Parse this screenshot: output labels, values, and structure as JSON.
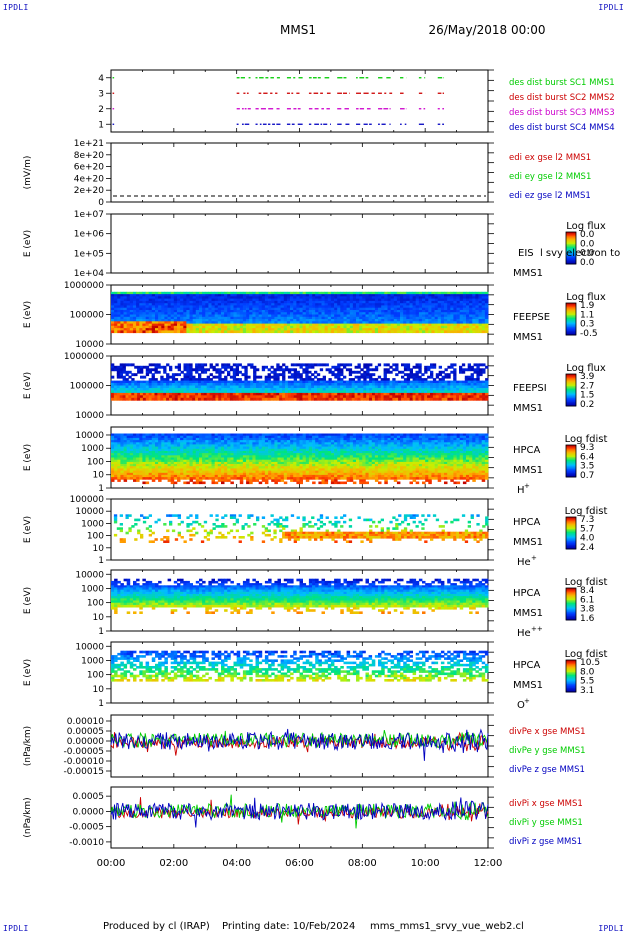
{
  "corner_label": "IPDLI",
  "header": {
    "spacecraft": "MMS1",
    "date": "26/May/2018 00:00"
  },
  "footer": {
    "produced_by": "Produced by cl (IRAP)",
    "printing_date": "Printing date: 10/Feb/2024",
    "file": "mms_mms1_srvy_vue_web2.cl"
  },
  "colors": {
    "blue": "#0000c0",
    "magenta": "#cc00cc",
    "red": "#cc0000",
    "green": "#00cc00"
  },
  "chart_data": [
    {
      "type": "scatter",
      "panel": "burst",
      "yticks": [
        "1",
        "2",
        "3",
        "4"
      ],
      "ylim": [
        0.5,
        4.5
      ],
      "series": [
        {
          "name": "des dist burst SC1 MMS1",
          "y": 4,
          "color": "#00cc00",
          "segments": [
            [
              0.05,
              0.1
            ],
            [
              4.0,
              4.45
            ],
            [
              4.6,
              5.4
            ],
            [
              5.6,
              6.1
            ],
            [
              6.3,
              7.0
            ],
            [
              7.2,
              7.6
            ],
            [
              7.8,
              8.3
            ],
            [
              8.5,
              8.9
            ],
            [
              9.2,
              9.4
            ],
            [
              9.8,
              10.0
            ],
            [
              10.4,
              10.6
            ]
          ]
        },
        {
          "name": "des dist burst SC2 MMS2",
          "y": 3,
          "color": "#cc0000",
          "segments": [
            [
              0.05,
              0.1
            ],
            [
              4.0,
              4.4
            ],
            [
              4.7,
              5.3
            ],
            [
              5.6,
              6.0
            ],
            [
              6.3,
              7.0
            ],
            [
              7.2,
              7.6
            ],
            [
              7.8,
              8.4
            ],
            [
              8.5,
              9.0
            ],
            [
              9.2,
              9.4
            ],
            [
              9.8,
              10.0
            ],
            [
              10.4,
              10.6
            ]
          ]
        },
        {
          "name": "des dist burst SC3 MMS3",
          "y": 2,
          "color": "#cc00cc",
          "segments": [
            [
              0.05,
              0.1
            ],
            [
              4.0,
              4.45
            ],
            [
              4.6,
              5.4
            ],
            [
              5.6,
              6.1
            ],
            [
              6.3,
              7.0
            ],
            [
              7.2,
              7.6
            ],
            [
              7.8,
              8.3
            ],
            [
              8.5,
              8.9
            ],
            [
              9.2,
              9.4
            ],
            [
              9.8,
              10.0
            ],
            [
              10.4,
              10.6
            ]
          ]
        },
        {
          "name": "des dist burst SC4 MMS4",
          "y": 1,
          "color": "#0000c0",
          "segments": [
            [
              0.05,
              0.1
            ],
            [
              4.0,
              4.4
            ],
            [
              4.6,
              5.4
            ],
            [
              5.6,
              6.1
            ],
            [
              6.3,
              7.0
            ],
            [
              7.2,
              7.6
            ],
            [
              7.8,
              8.3
            ],
            [
              8.5,
              8.9
            ],
            [
              9.2,
              9.4
            ],
            [
              9.8,
              10.0
            ],
            [
              10.4,
              10.6
            ]
          ]
        }
      ]
    },
    {
      "type": "line",
      "panel": "edi",
      "ylabel": "(mV/m)",
      "yticks": [
        "0",
        "2e+20",
        "4e+20",
        "6e+20",
        "8e+20",
        "1e+21"
      ],
      "ylim": [
        0,
        1e+21
      ],
      "series": [
        {
          "name": "edi ex gse l2 MMS1",
          "color": "#cc0000"
        },
        {
          "name": "edi ey gse l2 MMS1",
          "color": "#00cc00"
        },
        {
          "name": "edi ez gse l2 MMS1",
          "color": "#0000c0"
        }
      ]
    },
    {
      "type": "heatmap",
      "panel": "eis",
      "ylabel": "E (eV)",
      "yticks": [
        "1e+04",
        "1e+05",
        "1e+06",
        "1e+07"
      ],
      "yscale": "log",
      "ylim": [
        10000,
        10000000
      ],
      "instrument": "EIS",
      "spacecraft": "MMS1",
      "overlay_text": "EIS  l svy electron to",
      "colorbar": {
        "title": "Log flux",
        "ticks": [
          "0.0",
          "0.0",
          "0.0",
          "0.0"
        ]
      }
    },
    {
      "type": "heatmap",
      "panel": "feepse",
      "ylabel": "E (eV)",
      "yticks": [
        "10000",
        "100000",
        "1000000"
      ],
      "yscale": "log",
      "ylim": [
        10000,
        1000000
      ],
      "instrument": "FEEPSE",
      "spacecraft": "MMS1",
      "colorbar": {
        "title": "Log flux",
        "ticks": [
          "1.9",
          "1.1",
          "0.3",
          "-0.5"
        ]
      }
    },
    {
      "type": "heatmap",
      "panel": "feepsi",
      "ylabel": "E (eV)",
      "yticks": [
        "10000",
        "100000",
        "1000000"
      ],
      "yscale": "log",
      "ylim": [
        10000,
        1000000
      ],
      "instrument": "FEEPSI",
      "spacecraft": "MMS1",
      "colorbar": {
        "title": "Log flux",
        "ticks": [
          "3.9",
          "2.7",
          "1.5",
          "0.2"
        ]
      }
    },
    {
      "type": "heatmap",
      "panel": "hpca_h",
      "ylabel": "E (eV)",
      "yticks": [
        "1",
        "10",
        "100",
        "1000",
        "10000"
      ],
      "yscale": "log",
      "ylim": [
        1,
        40000
      ],
      "instrument": "HPCA",
      "spacecraft": "MMS1",
      "species": "H",
      "species_charge": "+",
      "colorbar": {
        "title": "Log fdist",
        "ticks": [
          "9.3",
          "6.4",
          "3.5",
          "0.7"
        ]
      }
    },
    {
      "type": "heatmap",
      "panel": "hpca_he",
      "ylabel": "E (eV)",
      "yticks": [
        "1",
        "10",
        "100",
        "1000",
        "10000",
        "100000"
      ],
      "yscale": "log",
      "ylim": [
        1,
        100000
      ],
      "instrument": "HPCA",
      "spacecraft": "MMS1",
      "species": "He",
      "species_charge": "+",
      "colorbar": {
        "title": "Log fdist",
        "ticks": [
          "7.3",
          "5.7",
          "4.0",
          "2.4"
        ]
      }
    },
    {
      "type": "heatmap",
      "panel": "hpca_hepp",
      "ylabel": "E (eV)",
      "yticks": [
        "1",
        "10",
        "100",
        "1000",
        "10000"
      ],
      "yscale": "log",
      "ylim": [
        1,
        20000
      ],
      "instrument": "HPCA",
      "spacecraft": "MMS1",
      "species": "He",
      "species_charge": "++",
      "colorbar": {
        "title": "Log fdist",
        "ticks": [
          "8.4",
          "6.1",
          "3.8",
          "1.6"
        ]
      }
    },
    {
      "type": "heatmap",
      "panel": "hpca_o",
      "ylabel": "E (eV)",
      "yticks": [
        "1",
        "10",
        "100",
        "1000",
        "10000"
      ],
      "yscale": "log",
      "ylim": [
        1,
        20000
      ],
      "instrument": "HPCA",
      "spacecraft": "MMS1",
      "species": "O",
      "species_charge": "+",
      "colorbar": {
        "title": "Log fdist",
        "ticks": [
          "10.5",
          "8.0",
          "5.5",
          "3.1"
        ]
      }
    },
    {
      "type": "line",
      "panel": "divpe",
      "ylabel": "(nPa/km)",
      "yticks": [
        "-0.00015",
        "-0.00010",
        "-0.00005",
        "0.00000",
        "0.00005",
        "0.00010"
      ],
      "ylim": [
        -0.00018,
        0.00013
      ],
      "series": [
        {
          "name": "divPe x gse MMS1",
          "color": "#cc0000"
        },
        {
          "name": "divPe y gse MMS1",
          "color": "#00cc00"
        },
        {
          "name": "divPe z gse MMS1",
          "color": "#0000c0"
        }
      ]
    },
    {
      "type": "line",
      "panel": "divpi",
      "ylabel": "(nPa/km)",
      "yticks": [
        "-0.0010",
        "-0.0005",
        "0.0000",
        "0.0005"
      ],
      "ylim": [
        -0.0012,
        0.0008
      ],
      "series": [
        {
          "name": "divPi x gse MMS1",
          "color": "#cc0000"
        },
        {
          "name": "divPi y gse MMS1",
          "color": "#00cc00"
        },
        {
          "name": "divPi z gse MMS1",
          "color": "#0000c0"
        }
      ]
    }
  ],
  "time_axis": {
    "ticks": [
      "00:00",
      "02:00",
      "04:00",
      "06:00",
      "08:00",
      "10:00",
      "12:00"
    ],
    "xlim": [
      0,
      12
    ]
  }
}
